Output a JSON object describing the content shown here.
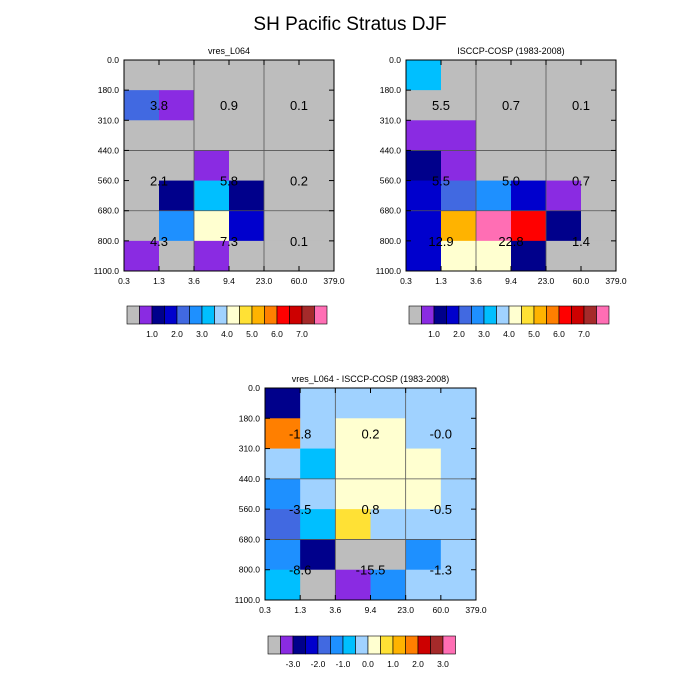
{
  "title": "SH Pacific Stratus DJF",
  "colors": {
    "grey": "#bdbdbd",
    "text": "#000000",
    "grid": "#555555",
    "main_palette": [
      "#bdbdbd",
      "#8a2be2",
      "#00008b",
      "#0000cd",
      "#4169e1",
      "#1e90ff",
      "#00bfff",
      "#a0d2ff",
      "#ffffd0",
      "#ffe135",
      "#ffb300",
      "#ff7f00",
      "#ff0000",
      "#cd0000",
      "#a52a2a",
      "#ff6eb4"
    ],
    "diff_palette": [
      "#bdbdbd",
      "#8a2be2",
      "#00008b",
      "#0000cd",
      "#4169e1",
      "#1e90ff",
      "#00bfff",
      "#a0d2ff",
      "#ffffd0",
      "#ffe135",
      "#ffb300",
      "#ff7f00",
      "#cd0000",
      "#a52a2a",
      "#ff6eb4"
    ]
  },
  "chart_data": [
    {
      "type": "heatmap",
      "title": "vres_L064",
      "x_tick_labels": [
        "0.3",
        "1.3",
        "3.6",
        "9.4",
        "23.0",
        "60.0",
        "379.0"
      ],
      "y_tick_labels": [
        "0.0",
        "180.0",
        "310.0",
        "440.0",
        "560.0",
        "680.0",
        "800.0",
        "1100.0"
      ],
      "xlabel": "",
      "ylabel": "",
      "cell_colors": [
        [
          0,
          0,
          0,
          0,
          0,
          0
        ],
        [
          4,
          1,
          0,
          0,
          0,
          0
        ],
        [
          0,
          0,
          0,
          0,
          0,
          0
        ],
        [
          0,
          0,
          1,
          0,
          0,
          0
        ],
        [
          0,
          2,
          6,
          2,
          0,
          0
        ],
        [
          0,
          5,
          8,
          3,
          0,
          0
        ],
        [
          1,
          0,
          1,
          0,
          0,
          0
        ]
      ],
      "group_labels": [
        "3.8",
        "0.9",
        "0.1",
        "2.1",
        "5.8",
        "0.2",
        "4.3",
        "7.3",
        "0.1"
      ],
      "colorbar_labels": [
        "1.0",
        "2.0",
        "3.0",
        "4.0",
        "5.0",
        "6.0",
        "7.0"
      ],
      "colorbar_first_label_box": 2
    },
    {
      "type": "heatmap",
      "title": "ISCCP-COSP (1983-2008)",
      "x_tick_labels": [
        "0.3",
        "1.3",
        "3.6",
        "9.4",
        "23.0",
        "60.0",
        "379.0"
      ],
      "y_tick_labels": [
        "0.0",
        "180.0",
        "310.0",
        "440.0",
        "560.0",
        "680.0",
        "800.0",
        "1100.0"
      ],
      "xlabel": "",
      "ylabel": "",
      "cell_colors": [
        [
          6,
          0,
          0,
          0,
          0,
          0
        ],
        [
          0,
          0,
          0,
          0,
          0,
          0
        ],
        [
          1,
          1,
          0,
          0,
          0,
          0
        ],
        [
          2,
          1,
          0,
          0,
          0,
          0
        ],
        [
          3,
          4,
          5,
          3,
          1,
          0
        ],
        [
          3,
          10,
          15,
          12,
          2,
          0
        ],
        [
          3,
          8,
          8,
          2,
          0,
          0
        ]
      ],
      "group_labels": [
        "5.5",
        "0.7",
        "0.1",
        "5.5",
        "5.0",
        "0.7",
        "12.9",
        "22.8",
        "1.4"
      ],
      "colorbar_labels": [
        "1.0",
        "2.0",
        "3.0",
        "4.0",
        "5.0",
        "6.0",
        "7.0"
      ],
      "colorbar_first_label_box": 2
    },
    {
      "type": "heatmap",
      "title": "vres_L064 - ISCCP-COSP (1983-2008)",
      "x_tick_labels": [
        "0.3",
        "1.3",
        "3.6",
        "9.4",
        "23.0",
        "60.0",
        "379.0"
      ],
      "y_tick_labels": [
        "0.0",
        "180.0",
        "310.0",
        "440.0",
        "560.0",
        "680.0",
        "800.0",
        "1100.0"
      ],
      "xlabel": "",
      "ylabel": "",
      "cell_colors": [
        [
          2,
          7,
          7,
          7,
          7,
          7
        ],
        [
          11,
          7,
          8,
          8,
          7,
          7
        ],
        [
          7,
          6,
          8,
          8,
          8,
          7
        ],
        [
          5,
          7,
          8,
          8,
          8,
          7
        ],
        [
          4,
          6,
          9,
          7,
          7,
          7
        ],
        [
          5,
          2,
          0,
          0,
          5,
          7
        ],
        [
          6,
          0,
          1,
          5,
          7,
          7
        ]
      ],
      "group_labels": [
        "-1.8",
        "0.2",
        "-0.0",
        "-3.5",
        "0.8",
        "-0.5",
        "-8.6",
        "-15.5",
        "-1.3"
      ],
      "colorbar_labels": [
        "-3.0",
        "-2.0",
        "-1.0",
        "0.0",
        "1.0",
        "2.0",
        "3.0"
      ],
      "colorbar_first_label_box": 2
    }
  ]
}
